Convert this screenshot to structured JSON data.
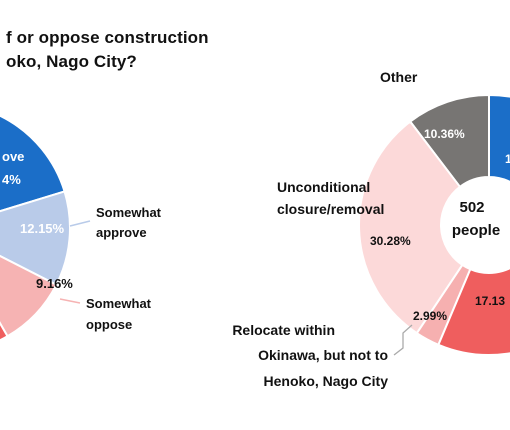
{
  "question": {
    "line1": "f or oppose construction",
    "line2": "oko, Nago City?"
  },
  "chart_data": [
    {
      "type": "pie",
      "slices": [
        {
          "label": "ove",
          "pct_text": "4%",
          "color": "#1b6ec8"
        },
        {
          "label": "Somewhat approve",
          "pct_text": "12.15%",
          "value": 12.15,
          "color": "#b9cbe9"
        },
        {
          "label": "Somewhat oppose",
          "pct_text": "9.16%",
          "value": 9.16,
          "color": "#f6b3b3"
        },
        {
          "label": "",
          "pct_text": "",
          "color": "#ef5e5e"
        }
      ],
      "outer_labels": {
        "somewhat_approve_1": "Somewhat",
        "somewhat_approve_2": "approve",
        "somewhat_oppose_1": "Somewhat",
        "somewhat_oppose_2": "oppose"
      }
    },
    {
      "type": "pie",
      "center_1": "502",
      "center_2": "people",
      "slices": [
        {
          "label": "",
          "pct_text": "1",
          "color": "#1b6ec8"
        },
        {
          "label": "Other",
          "pct_text": "10.36%",
          "value": 10.36,
          "color": "#777573"
        },
        {
          "label": "Unconditional closure/removal",
          "pct_text": "30.28%",
          "value": 30.28,
          "color": "#fcd9d9"
        },
        {
          "label": "Relocate within Okinawa, but not to Henoko, Nago City",
          "pct_text": "2.99%",
          "value": 2.99,
          "color": "#f6b0b0"
        },
        {
          "label": "",
          "pct_text": "17.13",
          "value": 17.13,
          "color": "#ef5e5e"
        }
      ],
      "outer_labels": {
        "other": "Other",
        "closure_1": "Unconditional",
        "closure_2": "closure/removal",
        "relocate_1": "Relocate within",
        "relocate_2": "Okinawa, but not to",
        "relocate_3": "Henoko, Nago City"
      }
    }
  ]
}
